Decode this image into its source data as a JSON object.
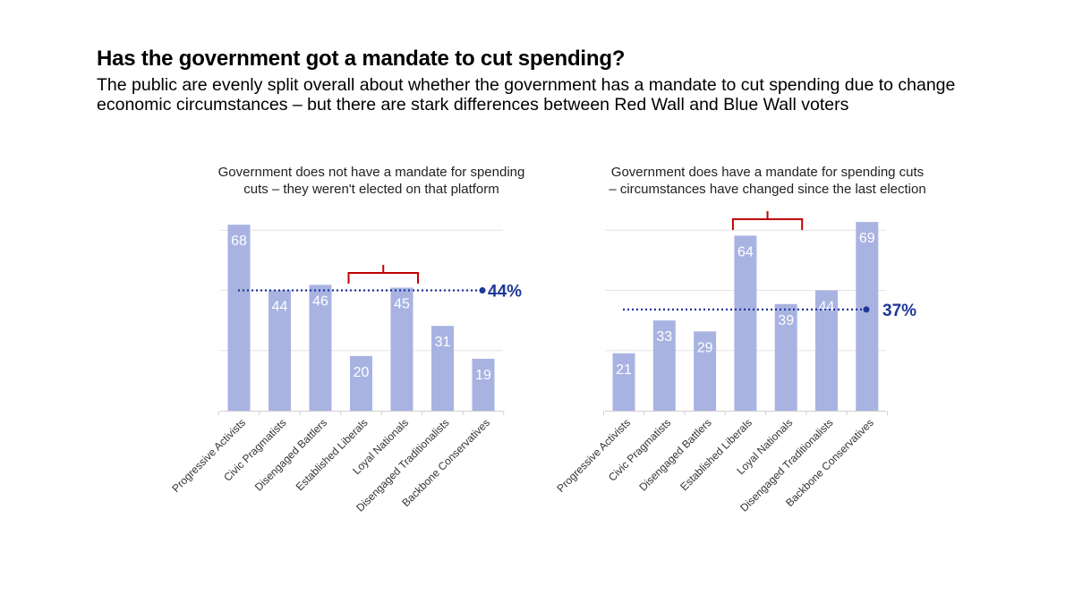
{
  "title": "Has the government got a mandate to cut spending?",
  "subtitle": "The public are evenly split overall about whether the government has a mandate to cut spending due to change economic circumstances – but there are stark differences between Red Wall and Blue Wall voters",
  "colors": {
    "bar": "#a9b3e2",
    "average": "#1f3799",
    "bracket": "#c00000",
    "grid": "#e4e4e4",
    "axis": "#d0d0d0",
    "label": "#ffffff",
    "tick": "#333333"
  },
  "chart_data": [
    {
      "type": "bar",
      "title": "Government does not have a mandate for spending cuts – they weren't elected on that platform",
      "categories": [
        "Progressive Activists",
        "Civic Pragmatists",
        "Disengaged Battlers",
        "Established Liberals",
        "Loyal Nationals",
        "Disengaged Traditionalists",
        "Backbone Conservatives"
      ],
      "values": [
        68,
        44,
        46,
        20,
        45,
        31,
        19
      ],
      "ylim": [
        0,
        70
      ],
      "grid": true,
      "average": {
        "value": 44,
        "label": "44%"
      },
      "bracket": {
        "from_category": 3,
        "to_category": 4
      }
    },
    {
      "type": "bar",
      "title": "Government does have a mandate for spending cuts – circumstances have changed since the last election",
      "categories": [
        "Progressive Activists",
        "Civic Pragmatists",
        "Disengaged Battlers",
        "Established Liberals",
        "Loyal Nationals",
        "Disengaged Traditionalists",
        "Backbone Conservatives"
      ],
      "values": [
        21,
        33,
        29,
        64,
        39,
        44,
        69
      ],
      "ylim": [
        0,
        70
      ],
      "grid": true,
      "average": {
        "value": 37,
        "label": "37%"
      },
      "bracket": {
        "from_category": 3,
        "to_category": 4
      }
    }
  ]
}
